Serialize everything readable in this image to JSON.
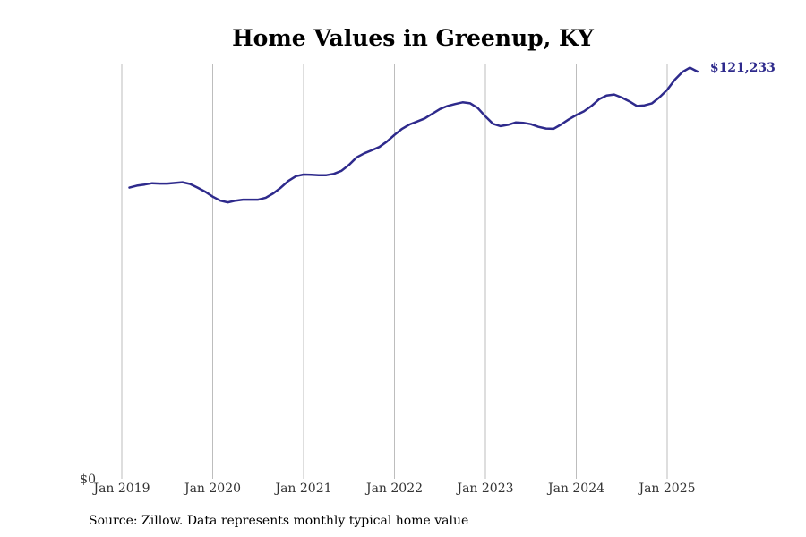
{
  "chart_data": {
    "type": "line",
    "title": "Home Values in Greenup, KY",
    "xlabel": "",
    "ylabel": "",
    "x_tick_labels": [
      "Jan 2019",
      "Jan 2020",
      "Jan 2021",
      "Jan 2022",
      "Jan 2023",
      "Jan 2024",
      "Jan 2025"
    ],
    "y_tick_labels": [
      "$0"
    ],
    "ylim": [
      0,
      121233
    ],
    "grid": "vertical",
    "end_label": "$121,233",
    "line_color": "#2e2a8c",
    "series": [
      {
        "x": [
          "2019-02",
          "2019-03",
          "2019-04",
          "2019-05",
          "2019-06",
          "2019-07",
          "2019-08",
          "2019-09",
          "2019-10",
          "2019-11",
          "2019-12",
          "2020-01",
          "2020-02",
          "2020-03",
          "2020-04",
          "2020-05",
          "2020-06",
          "2020-07",
          "2020-08",
          "2020-09",
          "2020-10",
          "2020-11",
          "2020-12",
          "2021-01",
          "2021-02",
          "2021-03",
          "2021-04",
          "2021-05",
          "2021-06",
          "2021-07",
          "2021-08",
          "2021-09",
          "2021-10",
          "2021-11",
          "2021-12",
          "2022-01",
          "2022-02",
          "2022-03",
          "2022-04",
          "2022-05",
          "2022-06",
          "2022-07",
          "2022-08",
          "2022-09",
          "2022-10",
          "2022-11",
          "2022-12",
          "2023-01",
          "2023-02",
          "2023-03",
          "2023-04",
          "2023-05",
          "2023-06",
          "2023-07",
          "2023-08",
          "2023-09",
          "2023-10",
          "2023-11",
          "2023-12",
          "2024-01",
          "2024-02",
          "2024-03",
          "2024-04",
          "2024-05",
          "2024-06",
          "2024-07",
          "2024-08",
          "2024-09",
          "2024-10",
          "2024-11",
          "2024-12",
          "2025-01",
          "2025-02",
          "2025-03",
          "2025-04",
          "2025-05"
        ],
        "values": [
          86700,
          87300,
          87600,
          88000,
          87900,
          87900,
          88100,
          88300,
          87800,
          86700,
          85500,
          84000,
          82800,
          82300,
          82800,
          83100,
          83100,
          83100,
          83700,
          85000,
          86700,
          88700,
          90100,
          90600,
          90500,
          90400,
          90400,
          90800,
          91700,
          93500,
          95700,
          96900,
          97800,
          98800,
          100400,
          102400,
          104200,
          105500,
          106400,
          107300,
          108700,
          110100,
          111000,
          111600,
          112100,
          111800,
          110400,
          107900,
          105700,
          105000,
          105400,
          106100,
          106000,
          105600,
          104800,
          104300,
          104200,
          105500,
          107000,
          108300,
          109400,
          111000,
          113000,
          114100,
          114400,
          113500,
          112400,
          111000,
          111200,
          111800,
          113600,
          115800,
          118800,
          121100,
          122400,
          121233
        ]
      }
    ]
  },
  "source": "Source: Zillow. Data represents monthly typical home value"
}
